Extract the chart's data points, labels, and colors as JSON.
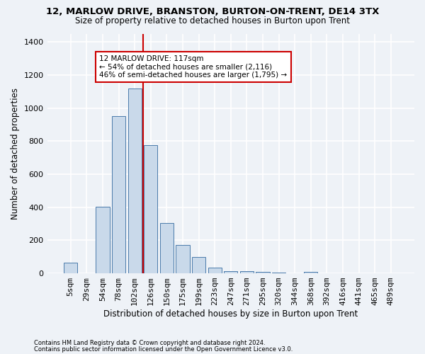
{
  "title_line1": "12, MARLOW DRIVE, BRANSTON, BURTON-ON-TRENT, DE14 3TX",
  "title_line2": "Size of property relative to detached houses in Burton upon Trent",
  "xlabel": "Distribution of detached houses by size in Burton upon Trent",
  "ylabel": "Number of detached properties",
  "footnote1": "Contains HM Land Registry data © Crown copyright and database right 2024.",
  "footnote2": "Contains public sector information licensed under the Open Government Licence v3.0.",
  "bar_labels": [
    "5sqm",
    "29sqm",
    "54sqm",
    "78sqm",
    "102sqm",
    "126sqm",
    "150sqm",
    "175sqm",
    "199sqm",
    "223sqm",
    "247sqm",
    "271sqm",
    "295sqm",
    "320sqm",
    "344sqm",
    "368sqm",
    "392sqm",
    "416sqm",
    "441sqm",
    "465sqm",
    "489sqm"
  ],
  "bar_values": [
    65,
    0,
    405,
    950,
    1120,
    775,
    305,
    170,
    100,
    35,
    15,
    15,
    10,
    5,
    0,
    10,
    0,
    0,
    0,
    0,
    0
  ],
  "bar_color": "#c9d9ea",
  "bar_edge_color": "#4a7aaa",
  "vline_x_idx": 4.54,
  "vline_color": "#cc0000",
  "annotation_text": "12 MARLOW DRIVE: 117sqm\n← 54% of detached houses are smaller (2,116)\n46% of semi-detached houses are larger (1,795) →",
  "annotation_box_color": "white",
  "annotation_box_edge_color": "#cc0000",
  "ylim": [
    0,
    1450
  ],
  "yticks": [
    0,
    200,
    400,
    600,
    800,
    1000,
    1200,
    1400
  ],
  "bg_color": "#eef2f7",
  "grid_color": "white"
}
